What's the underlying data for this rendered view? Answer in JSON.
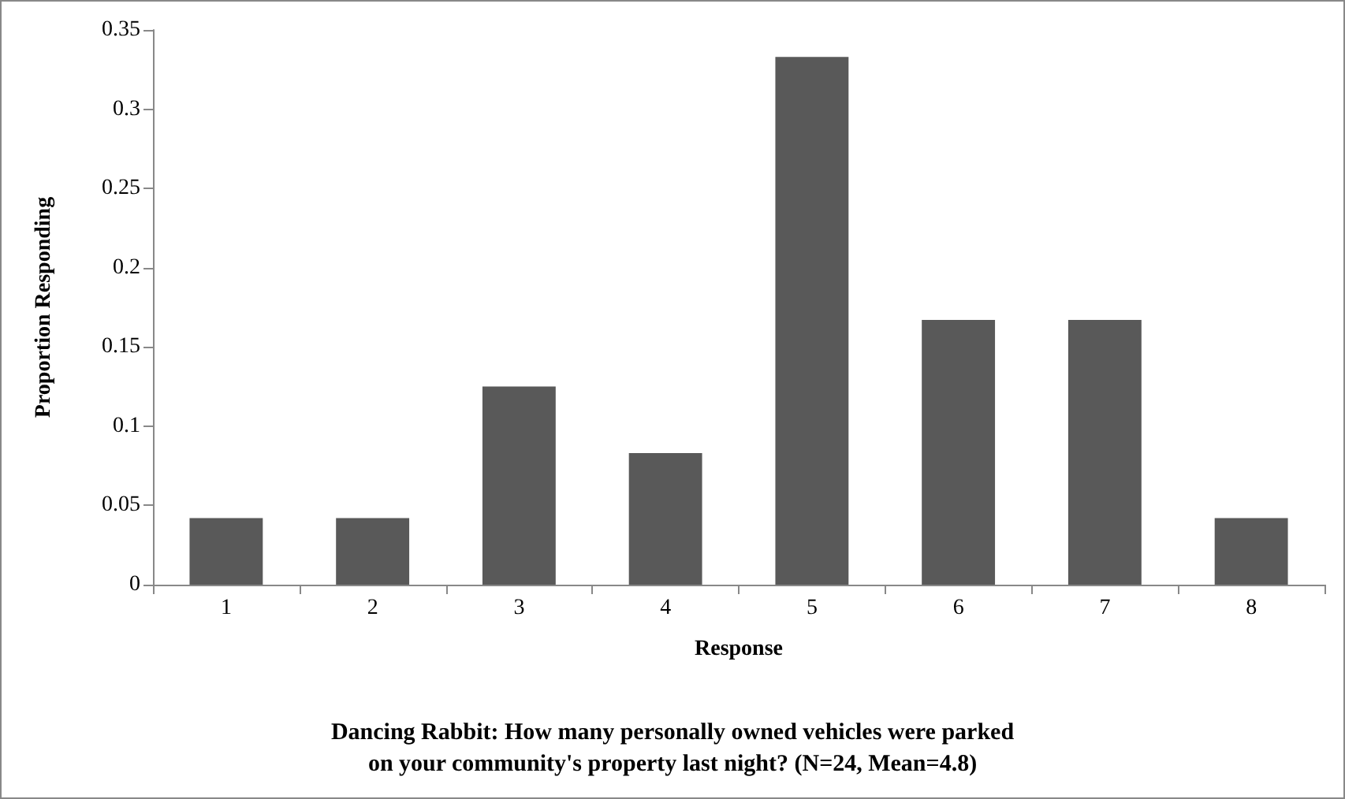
{
  "chart_data": {
    "type": "bar",
    "title": "Dancing Rabbit: How many personally owned vehicles were parked\non your community's property last night? (N=24, Mean=4.8)",
    "xlabel": "Response",
    "ylabel": "Proportion Responding",
    "categories": [
      "1",
      "2",
      "3",
      "4",
      "5",
      "6",
      "7",
      "8"
    ],
    "values": [
      0.042,
      0.042,
      0.125,
      0.083,
      0.333,
      0.167,
      0.167,
      0.042
    ],
    "color": "#595959",
    "ylim": [
      0,
      0.35
    ],
    "yticks": [
      0,
      0.05,
      0.1,
      0.15,
      0.2,
      0.25,
      0.3,
      0.35
    ],
    "grid": false
  }
}
